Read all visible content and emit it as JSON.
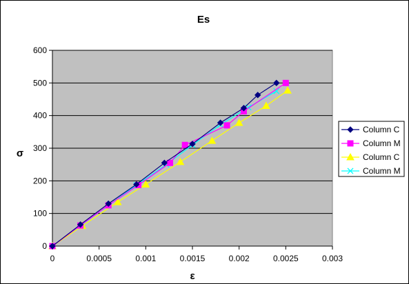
{
  "chart_data": {
    "type": "line",
    "title": "Es",
    "xlabel": "ε",
    "ylabel": "σ",
    "xlim": [
      0,
      0.003
    ],
    "ylim": [
      0,
      600
    ],
    "x_ticks": [
      "0",
      "0.0005",
      "0.001",
      "0.0015",
      "0.002",
      "0.0025",
      "0.003"
    ],
    "y_ticks": [
      "0",
      "100",
      "200",
      "300",
      "400",
      "500",
      "600"
    ],
    "grid": "horizontal",
    "plot_background": "#c0c0c0",
    "legend_position": "right",
    "series": [
      {
        "name": "Column C",
        "color": "#000080",
        "marker": "diamond",
        "points": [
          [
            0,
            0
          ],
          [
            0.0003,
            66
          ],
          [
            0.0006,
            130
          ],
          [
            0.0009,
            189
          ],
          [
            0.0012,
            255
          ],
          [
            0.0015,
            313
          ],
          [
            0.0018,
            378
          ],
          [
            0.00205,
            423
          ],
          [
            0.0022,
            463
          ],
          [
            0.0024,
            500
          ]
        ]
      },
      {
        "name": "Column M",
        "color": "#ff00ff",
        "marker": "square",
        "points": [
          [
            0,
            0
          ],
          [
            0.0003,
            63
          ],
          [
            0.0006,
            125
          ],
          [
            0.00092,
            187
          ],
          [
            0.00126,
            255
          ],
          [
            0.00142,
            310
          ],
          [
            0.00187,
            370
          ],
          [
            0.00205,
            413
          ],
          [
            0.0025,
            500
          ]
        ]
      },
      {
        "name": "Column C",
        "color": "#ffff00",
        "marker": "triangle",
        "points": [
          [
            0,
            0
          ],
          [
            0.00032,
            62
          ],
          [
            0.0007,
            135
          ],
          [
            0.001,
            189
          ],
          [
            0.00137,
            258
          ],
          [
            0.00171,
            323
          ],
          [
            0.002,
            378
          ],
          [
            0.00229,
            430
          ],
          [
            0.00252,
            477
          ]
        ]
      },
      {
        "name": "Column M",
        "color": "#00ffff",
        "marker": "x",
        "points": [
          [
            0,
            0
          ],
          [
            0.0003,
            62
          ],
          [
            0.0006,
            125
          ],
          [
            0.0009,
            187
          ],
          [
            0.00122,
            250
          ],
          [
            0.0015,
            310
          ],
          [
            0.0018,
            372
          ],
          [
            0.0021,
            425
          ],
          [
            0.0024,
            475
          ]
        ]
      }
    ]
  }
}
